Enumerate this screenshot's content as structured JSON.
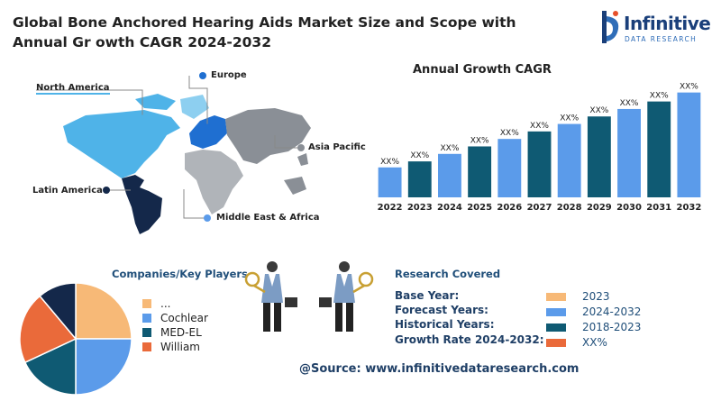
{
  "title": "Global Bone Anchored Hearing Aids Market Size and Scope with Annual Gr owth CAGR 2024-2032",
  "logo": {
    "name": "Infinitive",
    "sub": "DATA RESEARCH",
    "colors": [
      "#1a3f7a",
      "#2f6db8",
      "#e6502b"
    ]
  },
  "map": {
    "regions": [
      {
        "label": "North America",
        "color": "#4fb3e8"
      },
      {
        "label": "Europe",
        "color": "#1f6fd1"
      },
      {
        "label": "Asia Pacific",
        "color": "#8a8f96"
      },
      {
        "label": "Latin America",
        "color": "#14284a"
      },
      {
        "label": "Middle East & Africa",
        "color": "#b0b4b9"
      }
    ]
  },
  "chart_data": {
    "type": "bar",
    "title": "Annual Growth CAGR",
    "categories": [
      "2022",
      "2023",
      "2024",
      "2025",
      "2026",
      "2027",
      "2028",
      "2029",
      "2030",
      "2031",
      "2032"
    ],
    "data_labels": [
      "XX%",
      "XX%",
      "XX%",
      "XX%",
      "XX%",
      "XX%",
      "XX%",
      "XX%",
      "XX%",
      "XX%",
      "XX%"
    ],
    "values": [
      1,
      1.2,
      1.45,
      1.7,
      1.95,
      2.2,
      2.45,
      2.7,
      2.95,
      3.2,
      3.5
    ],
    "colors": [
      "#5b9bea",
      "#0f5a73",
      "#5b9bea",
      "#0f5a73",
      "#5b9bea",
      "#0f5a73",
      "#5b9bea",
      "#0f5a73",
      "#5b9bea",
      "#0f5a73",
      "#5b9bea"
    ],
    "ylim": [
      0,
      3.7
    ],
    "grid": false,
    "y_axis": "hidden"
  },
  "players": {
    "heading": "Companies/Key Players",
    "pie": [
      {
        "label": "...",
        "value": 25,
        "color": "#f7b977"
      },
      {
        "label": "Cochlear",
        "value": 25,
        "color": "#5b9bea"
      },
      {
        "label": "MED-EL",
        "value": 25,
        "color": "#0f5a73"
      },
      {
        "label": "William",
        "value": 25,
        "color": "#ea6a3a"
      }
    ],
    "pie_extra_color": "#14284a",
    "legend": [
      {
        "label": "...",
        "color": "#f7b977"
      },
      {
        "label": "Cochlear",
        "color": "#5b9bea"
      },
      {
        "label": "MED-EL",
        "color": "#0f5a73"
      },
      {
        "label": "William",
        "color": "#ea6a3a"
      }
    ]
  },
  "research": {
    "heading": "Research Covered",
    "rows": [
      {
        "label": "Base Year:",
        "value": "2023",
        "color": "#f7b977"
      },
      {
        "label": "Forecast Years:",
        "value": "2024-2032",
        "color": "#5b9bea"
      },
      {
        "label": "Historical Years:",
        "value": "2018-2023",
        "color": "#0f5a73"
      },
      {
        "label": "Growth Rate 2024-2032:",
        "value": "XX%",
        "color": "#ea6a3a"
      }
    ]
  },
  "source": "@Source: www.infinitivedataresearch.com"
}
